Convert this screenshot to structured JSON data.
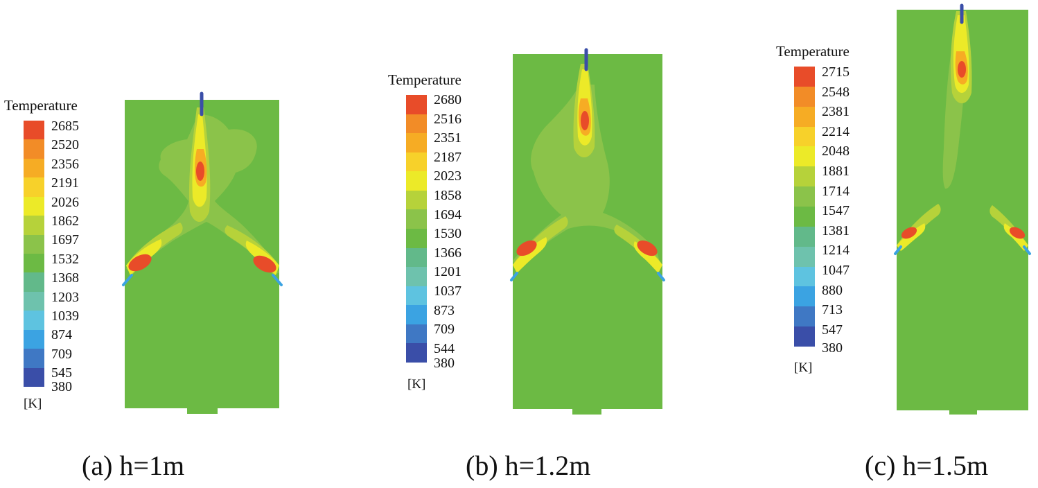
{
  "legend_title": "Temperature",
  "unit": "[K]",
  "colormap": [
    "#3a4ea8",
    "#3f78c4",
    "#3ba3e2",
    "#5ec3e0",
    "#6ec2ad",
    "#62b98a",
    "#6cba44",
    "#8bc34a",
    "#b6d23a",
    "#ecea28",
    "#f7d12a",
    "#f6ac24",
    "#f28c27",
    "#e84c29"
  ],
  "panels": [
    {
      "id": "a",
      "caption": "(a) h=1m",
      "levels": [
        "2685",
        "2520",
        "2356",
        "2191",
        "2026",
        "1862",
        "1697",
        "1532",
        "1368",
        "1203",
        "1039",
        "874",
        "709",
        "545",
        "380"
      ]
    },
    {
      "id": "b",
      "caption": "(b) h=1.2m",
      "levels": [
        "2680",
        "2516",
        "2351",
        "2187",
        "2023",
        "1858",
        "1694",
        "1530",
        "1366",
        "1201",
        "1037",
        "873",
        "709",
        "544",
        "380"
      ]
    },
    {
      "id": "c",
      "caption": "(c) h=1.5m",
      "levels": [
        "2715",
        "2548",
        "2381",
        "2214",
        "2048",
        "1881",
        "1714",
        "1547",
        "1381",
        "1214",
        "1047",
        "880",
        "713",
        "547",
        "380"
      ]
    }
  ]
}
